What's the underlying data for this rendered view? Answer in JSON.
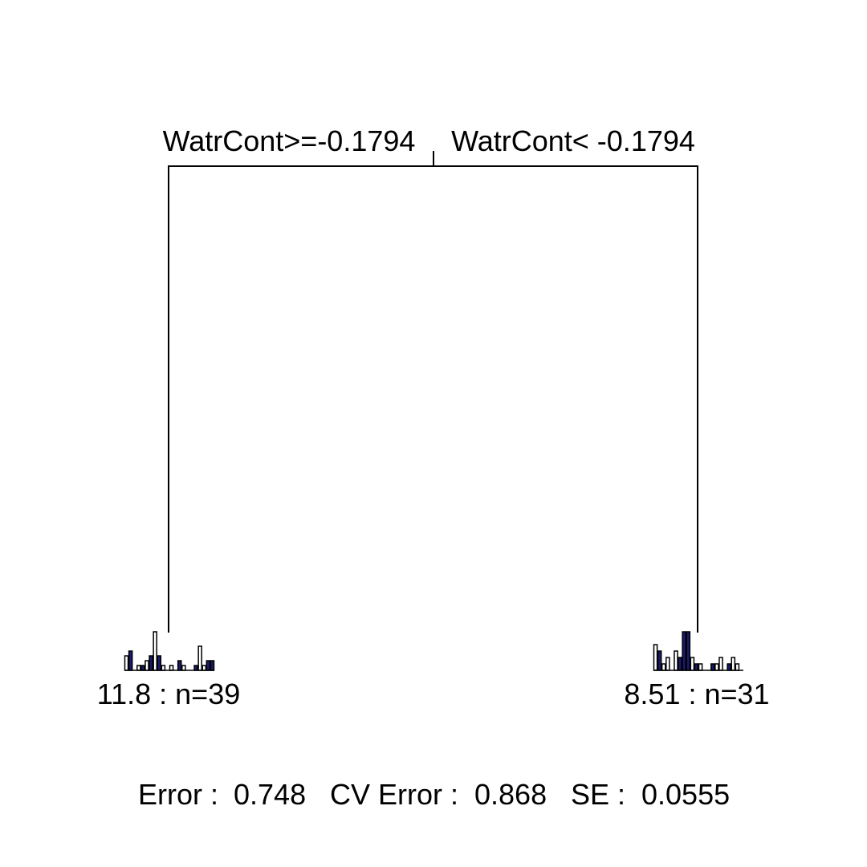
{
  "tree": {
    "root": {
      "split_left_label": "WatrCont>=-0.1794",
      "split_right_label": "WatrCont< -0.1794"
    },
    "leaves": [
      {
        "label": "11.8 : n=39",
        "histogram": [
          3,
          4,
          0,
          1,
          1,
          2,
          3,
          8,
          3,
          1,
          0,
          1,
          0,
          2,
          1,
          0,
          0,
          1,
          5,
          1,
          2,
          2
        ],
        "bar_colors": [
          "#ffffff",
          "#1a1a6e",
          "#ffffff",
          "#ffffff",
          "#1a1a6e",
          "#ffffff",
          "#1a1a6e",
          "#ffffff",
          "#1a1a6e",
          "#ffffff",
          "#ffffff",
          "#ffffff",
          "#ffffff",
          "#1a1a6e",
          "#ffffff",
          "#ffffff",
          "#ffffff",
          "#1a1a6e",
          "#ffffff",
          "#ffffff",
          "#1a1a6e",
          "#1a1a6e"
        ]
      },
      {
        "label": "8.51 : n=31",
        "histogram": [
          4,
          3,
          1,
          2,
          0,
          3,
          2,
          6,
          6,
          2,
          1,
          1,
          0,
          0,
          1,
          1,
          2,
          0,
          1,
          2,
          1,
          0
        ],
        "bar_colors": [
          "#ffffff",
          "#1a1a6e",
          "#ffffff",
          "#ffffff",
          "#1a1a6e",
          "#ffffff",
          "#1a1a6e",
          "#1a1a6e",
          "#1a1a6e",
          "#ffffff",
          "#1a1a6e",
          "#ffffff",
          "#ffffff",
          "#ffffff",
          "#1a1a6e",
          "#ffffff",
          "#ffffff",
          "#ffffff",
          "#1a1a6e",
          "#ffffff",
          "#ffffff",
          "#ffffff"
        ]
      }
    ]
  },
  "footer": {
    "error_label": "Error :",
    "error_value": "0.748",
    "cv_error_label": "CV Error :",
    "cv_error_value": "0.868",
    "se_label": "SE :",
    "se_value": "0.0555"
  },
  "colors": {
    "line": "#000000",
    "bar_dark": "#1a1a6e",
    "bar_light": "#ffffff"
  }
}
